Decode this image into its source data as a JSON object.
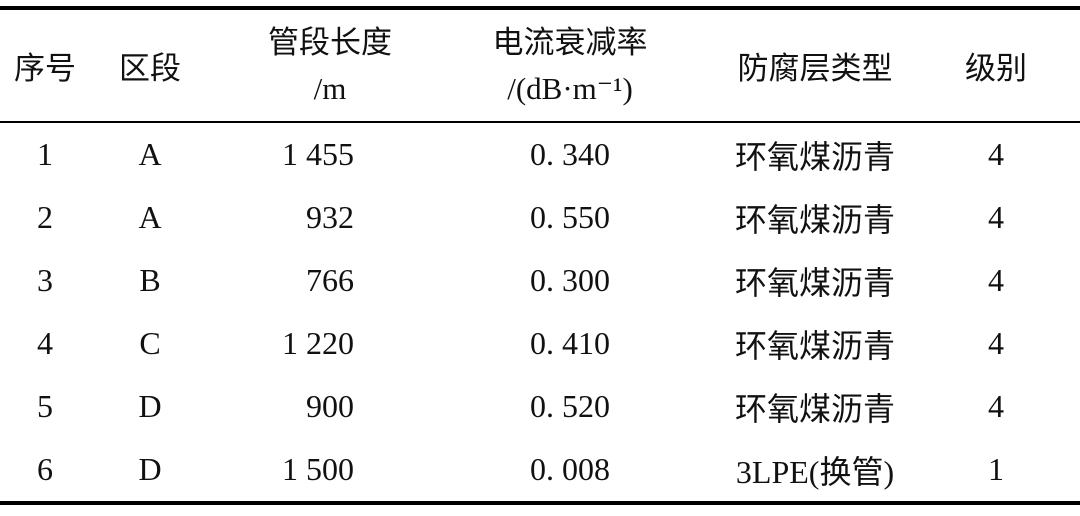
{
  "page": {
    "background": "#ffffff",
    "text_color": "#111111",
    "rule_color": "#000000"
  },
  "table": {
    "headers": [
      {
        "line1": "序号",
        "line2": ""
      },
      {
        "line1": "区段",
        "line2": ""
      },
      {
        "line1": "管段长度",
        "line2": "/m"
      },
      {
        "line1": "电流衰减率",
        "line2": "/(dB·m⁻¹)"
      },
      {
        "line1": "防腐层类型",
        "line2": ""
      },
      {
        "line1": "级别",
        "line2": ""
      }
    ],
    "rows": [
      [
        "1",
        "A",
        "1 455",
        "0. 340",
        "环氧煤沥青",
        "4"
      ],
      [
        "2",
        "A",
        "932",
        "0. 550",
        "环氧煤沥青",
        "4"
      ],
      [
        "3",
        "B",
        "766",
        "0. 300",
        "环氧煤沥青",
        "4"
      ],
      [
        "4",
        "C",
        "1 220",
        "0. 410",
        "环氧煤沥青",
        "4"
      ],
      [
        "5",
        "D",
        "900",
        "0. 520",
        "环氧煤沥青",
        "4"
      ],
      [
        "6",
        "D",
        "1 500",
        "0. 008",
        "3LPE(换管)",
        "1"
      ]
    ]
  },
  "chart_data": {
    "type": "table",
    "columns": [
      "序号",
      "区段",
      "管段长度/m",
      "电流衰减率/(dB·m⁻¹)",
      "防腐层类型",
      "级别"
    ],
    "rows": [
      [
        "1",
        "A",
        "1 455",
        "0.340",
        "环氧煤沥青",
        "4"
      ],
      [
        "2",
        "A",
        "932",
        "0.550",
        "环氧煤沥青",
        "4"
      ],
      [
        "3",
        "B",
        "766",
        "0.300",
        "环氧煤沥青",
        "4"
      ],
      [
        "4",
        "C",
        "1 220",
        "0.410",
        "环氧煤沥青",
        "4"
      ],
      [
        "5",
        "D",
        "900",
        "0.520",
        "环氧煤沥青",
        "4"
      ],
      [
        "6",
        "D",
        "1 500",
        "0.008",
        "3LPE(换管)",
        "1"
      ]
    ]
  }
}
